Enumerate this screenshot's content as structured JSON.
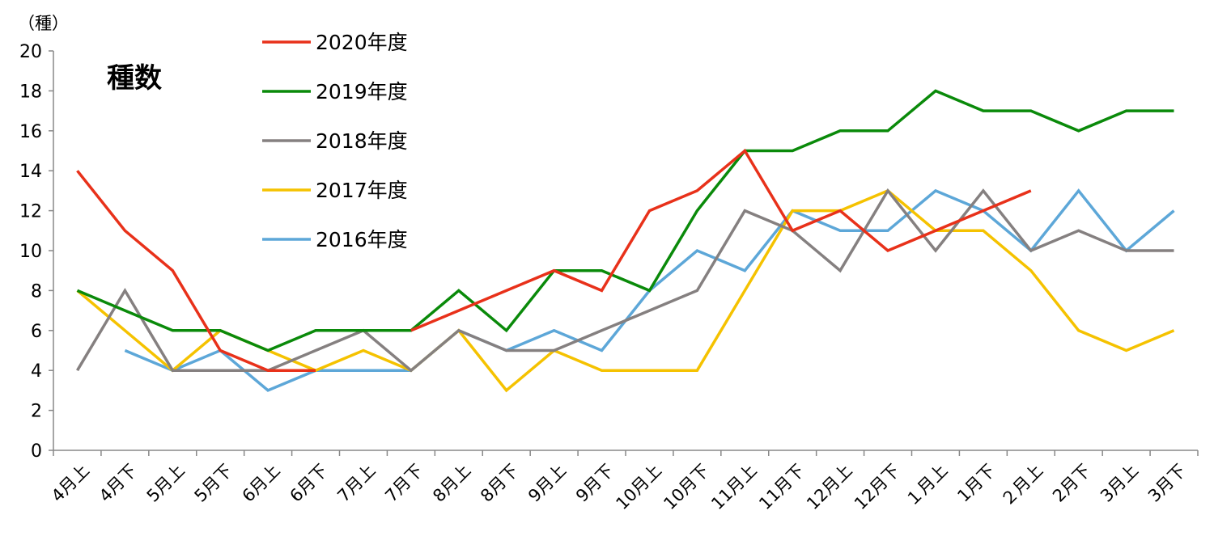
{
  "chart_data": {
    "type": "line",
    "title": "種数",
    "ylabel": "（種）",
    "xlabel": "",
    "ylim": [
      0,
      20
    ],
    "yticks": [
      0,
      2,
      4,
      6,
      8,
      10,
      12,
      14,
      16,
      18,
      20
    ],
    "grid": false,
    "legend_position": "top-left",
    "categories": [
      "4月上",
      "4月下",
      "5月上",
      "5月下",
      "6月上",
      "6月下",
      "7月上",
      "7月下",
      "8月上",
      "8月下",
      "9月上",
      "9月下",
      "10月上",
      "10月下",
      "11月上",
      "11月下",
      "12月上",
      "12月下",
      "１月上",
      "1月下",
      "２月上",
      "2月下",
      "3月上",
      "3月下"
    ],
    "series": [
      {
        "name": "2020年度",
        "color": "#e8311a",
        "values": [
          14,
          11,
          9,
          5,
          4,
          4,
          null,
          6,
          7,
          8,
          9,
          8,
          12,
          13,
          15,
          11,
          12,
          10,
          11,
          12,
          13,
          null,
          null,
          null
        ]
      },
      {
        "name": "2019年度",
        "color": "#0a8a0a",
        "values": [
          8,
          7,
          6,
          6,
          5,
          6,
          6,
          6,
          8,
          6,
          9,
          9,
          8,
          12,
          15,
          15,
          16,
          16,
          18,
          17,
          17,
          16,
          17,
          17
        ]
      },
      {
        "name": "2018年度",
        "color": "#858080",
        "values": [
          4,
          8,
          4,
          4,
          4,
          5,
          6,
          4,
          6,
          5,
          5,
          6,
          7,
          8,
          12,
          11,
          9,
          13,
          10,
          13,
          10,
          11,
          10,
          10
        ]
      },
      {
        "name": "2017年度",
        "color": "#f5c200",
        "values": [
          8,
          6,
          4,
          6,
          5,
          4,
          5,
          4,
          6,
          3,
          5,
          4,
          4,
          4,
          8,
          12,
          12,
          13,
          11,
          11,
          9,
          6,
          5,
          6
        ]
      },
      {
        "name": "2016年度",
        "color": "#5da7d8",
        "values": [
          null,
          5,
          4,
          5,
          3,
          4,
          4,
          4,
          6,
          5,
          6,
          5,
          8,
          10,
          9,
          12,
          11,
          11,
          13,
          12,
          10,
          13,
          10,
          12
        ]
      }
    ]
  }
}
